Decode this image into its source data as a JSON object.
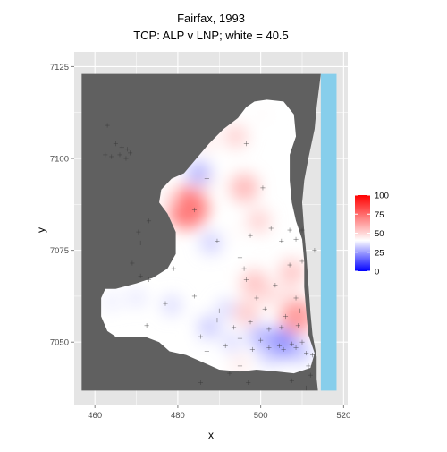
{
  "chart_data": {
    "type": "heatmap",
    "title": "Fairfax, 1993",
    "subtitle": "TCP: ALP v LNP; white = 40.5",
    "xlabel": "x",
    "ylabel": "y",
    "xlim": [
      455,
      521
    ],
    "ylim": [
      7033,
      7129
    ],
    "x_ticks": [
      460,
      480,
      500,
      520
    ],
    "y_ticks": [
      7050,
      7075,
      7100,
      7125
    ],
    "grid": true,
    "legend": {
      "position": "right",
      "type": "colorbar",
      "breaks": [
        0,
        25,
        50,
        75,
        100
      ],
      "low_color": "#0000ff",
      "mid_color": "#ffffff",
      "high_color": "#ff0000",
      "midpoint": 40.5
    },
    "colors": {
      "panel": "#e5e5e5",
      "land": "#606060",
      "ocean": "#87ceeb",
      "grid": "#ffffff",
      "booth_marker": "#333333"
    },
    "hotspots": [
      {
        "x": 482.3,
        "y": 7086.5,
        "value": 75
      },
      {
        "x": 496.0,
        "y": 7092.0,
        "value": 58
      },
      {
        "x": 486.0,
        "y": 7094.0,
        "value": 48
      },
      {
        "x": 499.5,
        "y": 7083.0,
        "value": 52
      },
      {
        "x": 493.5,
        "y": 7079.5,
        "value": 42
      },
      {
        "x": 488.0,
        "y": 7077.0,
        "value": 32
      },
      {
        "x": 485.0,
        "y": 7096.0,
        "value": 28
      },
      {
        "x": 477.5,
        "y": 7089.0,
        "value": 45
      },
      {
        "x": 496.5,
        "y": 7058.0,
        "value": 54
      },
      {
        "x": 498.5,
        "y": 7066.0,
        "value": 56
      },
      {
        "x": 508.8,
        "y": 7057.0,
        "value": 66
      },
      {
        "x": 507.5,
        "y": 7069.0,
        "value": 55
      },
      {
        "x": 507.0,
        "y": 7064.0,
        "value": 47
      },
      {
        "x": 502.0,
        "y": 7063.0,
        "value": 50
      },
      {
        "x": 491.5,
        "y": 7059.0,
        "value": 34
      },
      {
        "x": 487.5,
        "y": 7054.0,
        "value": 31
      },
      {
        "x": 478.5,
        "y": 7060.0,
        "value": 34
      },
      {
        "x": 470.0,
        "y": 7062.0,
        "value": 36
      },
      {
        "x": 464.0,
        "y": 7061.0,
        "value": 37
      },
      {
        "x": 505.0,
        "y": 7049.5,
        "value": 20
      },
      {
        "x": 500.0,
        "y": 7051.5,
        "value": 28
      },
      {
        "x": 493.0,
        "y": 7050.0,
        "value": 34
      },
      {
        "x": 495.0,
        "y": 7044.0,
        "value": 46
      },
      {
        "x": 502.0,
        "y": 7046.5,
        "value": 32
      },
      {
        "x": 509.5,
        "y": 7047.5,
        "value": 30
      },
      {
        "x": 485.5,
        "y": 7049.5,
        "value": 40
      },
      {
        "x": 487.0,
        "y": 7104.5,
        "value": 46
      },
      {
        "x": 494.0,
        "y": 7106.0,
        "value": 52
      },
      {
        "x": 500.5,
        "y": 7112.0,
        "value": 42
      }
    ],
    "booths": [
      {
        "x": 466.5,
        "y": 7103.0
      },
      {
        "x": 467.8,
        "y": 7102.5
      },
      {
        "x": 466.0,
        "y": 7101.0
      },
      {
        "x": 465.0,
        "y": 7104.0
      },
      {
        "x": 467.5,
        "y": 7100.0
      },
      {
        "x": 464.0,
        "y": 7100.5
      },
      {
        "x": 462.5,
        "y": 7101.0
      },
      {
        "x": 468.5,
        "y": 7101.5
      },
      {
        "x": 463.0,
        "y": 7109.0
      },
      {
        "x": 473.0,
        "y": 7083.0
      },
      {
        "x": 470.5,
        "y": 7080.0
      },
      {
        "x": 471.0,
        "y": 7077.0
      },
      {
        "x": 484.0,
        "y": 7086.0
      },
      {
        "x": 500.5,
        "y": 7092.0
      },
      {
        "x": 496.5,
        "y": 7104.0
      },
      {
        "x": 487.0,
        "y": 7094.5
      },
      {
        "x": 502.5,
        "y": 7081.0
      },
      {
        "x": 507.0,
        "y": 7080.5
      },
      {
        "x": 510.0,
        "y": 7080.5
      },
      {
        "x": 505.0,
        "y": 7077.5
      },
      {
        "x": 508.5,
        "y": 7078.0
      },
      {
        "x": 489.5,
        "y": 7077.5
      },
      {
        "x": 495.0,
        "y": 7073.0
      },
      {
        "x": 497.5,
        "y": 7079.0
      },
      {
        "x": 503.5,
        "y": 7065.5
      },
      {
        "x": 510.0,
        "y": 7072.0
      },
      {
        "x": 507.0,
        "y": 7071.0
      },
      {
        "x": 508.5,
        "y": 7062.0
      },
      {
        "x": 509.5,
        "y": 7058.5
      },
      {
        "x": 506.0,
        "y": 7057.0
      },
      {
        "x": 501.0,
        "y": 7059.0
      },
      {
        "x": 499.0,
        "y": 7062.0
      },
      {
        "x": 496.5,
        "y": 7067.0
      },
      {
        "x": 496.0,
        "y": 7070.0
      },
      {
        "x": 490.0,
        "y": 7058.5
      },
      {
        "x": 489.5,
        "y": 7056.0
      },
      {
        "x": 493.5,
        "y": 7054.0
      },
      {
        "x": 497.5,
        "y": 7055.5
      },
      {
        "x": 479.0,
        "y": 7070.0
      },
      {
        "x": 477.0,
        "y": 7060.5
      },
      {
        "x": 484.0,
        "y": 7062.5
      },
      {
        "x": 471.0,
        "y": 7068.0
      },
      {
        "x": 469.0,
        "y": 7071.5
      },
      {
        "x": 473.0,
        "y": 7067.0
      },
      {
        "x": 485.5,
        "y": 7051.5
      },
      {
        "x": 487.0,
        "y": 7047.5
      },
      {
        "x": 491.5,
        "y": 7049.0
      },
      {
        "x": 495.0,
        "y": 7051.0
      },
      {
        "x": 498.0,
        "y": 7048.0
      },
      {
        "x": 500.0,
        "y": 7050.5
      },
      {
        "x": 502.0,
        "y": 7048.5
      },
      {
        "x": 504.5,
        "y": 7049.0
      },
      {
        "x": 505.5,
        "y": 7048.0
      },
      {
        "x": 507.5,
        "y": 7049.5
      },
      {
        "x": 508.5,
        "y": 7048.5
      },
      {
        "x": 510.0,
        "y": 7050.0
      },
      {
        "x": 511.0,
        "y": 7047.0
      },
      {
        "x": 512.5,
        "y": 7046.5
      },
      {
        "x": 511.5,
        "y": 7043.5
      },
      {
        "x": 512.0,
        "y": 7041.0
      },
      {
        "x": 511.0,
        "y": 7037.5
      },
      {
        "x": 507.5,
        "y": 7039.5
      },
      {
        "x": 495.0,
        "y": 7043.5
      },
      {
        "x": 497.0,
        "y": 7039.0
      },
      {
        "x": 485.5,
        "y": 7039.0
      },
      {
        "x": 492.5,
        "y": 7041.5
      },
      {
        "x": 502.0,
        "y": 7053.5
      },
      {
        "x": 505.0,
        "y": 7054.0
      },
      {
        "x": 509.0,
        "y": 7054.5
      },
      {
        "x": 513.0,
        "y": 7075.0
      },
      {
        "x": 472.5,
        "y": 7054.5
      }
    ]
  }
}
